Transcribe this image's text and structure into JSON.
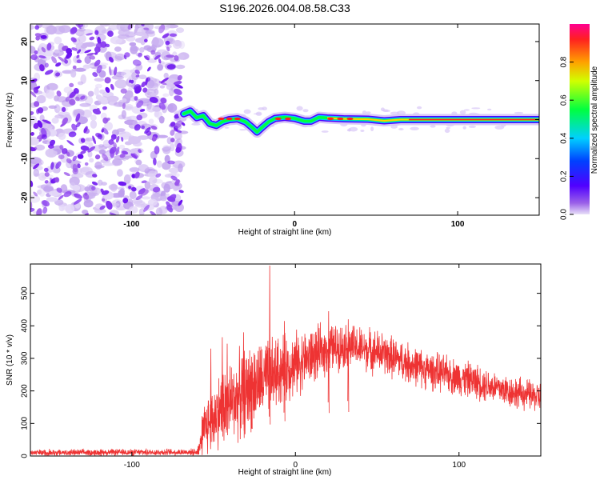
{
  "title": "S196.2026.004.08.58.C33",
  "chart_data": [
    {
      "type": "heatmap",
      "title": "S196.2026.004.08.58.C33",
      "xlabel": "Height of straight line (km)",
      "ylabel": "Frequency (Hz)",
      "xlim": [
        -162,
        150
      ],
      "ylim": [
        -24.5,
        24.5
      ],
      "xticks": [
        -100,
        0,
        100
      ],
      "yticks": [
        -20,
        -10,
        0,
        10,
        20
      ],
      "colorbar": {
        "label": "Normalized spectral amplitude",
        "range": [
          0.0,
          1.0
        ],
        "ticks": [
          0.0,
          0.2,
          0.4,
          0.6,
          0.8
        ]
      },
      "noise_region_x": [
        -162,
        -68
      ],
      "signal_trace": [
        {
          "x": -68,
          "y": 1.5
        },
        {
          "x": -64,
          "y": 2.2
        },
        {
          "x": -60,
          "y": 0.5
        },
        {
          "x": -56,
          "y": 1.0
        },
        {
          "x": -52,
          "y": -1.0
        },
        {
          "x": -48,
          "y": -1.5
        },
        {
          "x": -44,
          "y": -0.5
        },
        {
          "x": -40,
          "y": 0.0
        },
        {
          "x": -35,
          "y": 0.2
        },
        {
          "x": -30,
          "y": -0.6
        },
        {
          "x": -26,
          "y": -2.0
        },
        {
          "x": -23,
          "y": -3.2
        },
        {
          "x": -20,
          "y": -2.0
        },
        {
          "x": -16,
          "y": -0.6
        },
        {
          "x": -12,
          "y": 0.3
        },
        {
          "x": -6,
          "y": 0.6
        },
        {
          "x": 0,
          "y": 0.3
        },
        {
          "x": 6,
          "y": -0.4
        },
        {
          "x": 10,
          "y": -0.4
        },
        {
          "x": 15,
          "y": 0.6
        },
        {
          "x": 20,
          "y": 0.4
        },
        {
          "x": 30,
          "y": 0.2
        },
        {
          "x": 45,
          "y": 0.1
        },
        {
          "x": 55,
          "y": -0.3
        },
        {
          "x": 65,
          "y": 0.0
        },
        {
          "x": 80,
          "y": 0.0
        },
        {
          "x": 100,
          "y": 0.0
        },
        {
          "x": 125,
          "y": 0.0
        },
        {
          "x": 150,
          "y": 0.0
        }
      ]
    },
    {
      "type": "line",
      "xlabel": "Height of straight line (km)",
      "ylabel": "SNR (10 * v/v)",
      "xlim": [
        -162,
        150
      ],
      "ylim": [
        0,
        590
      ],
      "xticks": [
        -100,
        0,
        100
      ],
      "yticks": [
        0,
        100,
        200,
        300,
        400,
        500
      ],
      "series": [
        {
          "name": "SNR",
          "color": "#ee3333",
          "envelope": [
            {
              "x": -162,
              "base": 10,
              "amp": 12
            },
            {
              "x": -60,
              "base": 12,
              "amp": 12
            },
            {
              "x": -58,
              "base": 40,
              "amp": 60
            },
            {
              "x": -55,
              "base": 90,
              "amp": 110
            },
            {
              "x": -45,
              "base": 150,
              "amp": 140
            },
            {
              "x": -30,
              "base": 200,
              "amp": 160
            },
            {
              "x": -10,
              "base": 260,
              "amp": 130
            },
            {
              "x": 20,
              "base": 330,
              "amp": 90
            },
            {
              "x": 30,
              "base": 340,
              "amp": 80
            },
            {
              "x": 50,
              "base": 320,
              "amp": 80
            },
            {
              "x": 80,
              "base": 265,
              "amp": 70
            },
            {
              "x": 110,
              "base": 230,
              "amp": 65
            },
            {
              "x": 130,
              "base": 200,
              "amp": 60
            },
            {
              "x": 150,
              "base": 180,
              "amp": 55
            }
          ],
          "spikes": [
            {
              "x": -52,
              "y": 330
            },
            {
              "x": -45,
              "y": 365
            },
            {
              "x": -42,
              "y": 345
            },
            {
              "x": -32,
              "y": 380
            },
            {
              "x": -27,
              "y": 305
            },
            {
              "x": -16,
              "y": 585
            },
            {
              "x": -7,
              "y": 415
            },
            {
              "x": 20,
              "y": 445
            },
            {
              "x": 32,
              "y": 420
            }
          ]
        }
      ]
    }
  ]
}
